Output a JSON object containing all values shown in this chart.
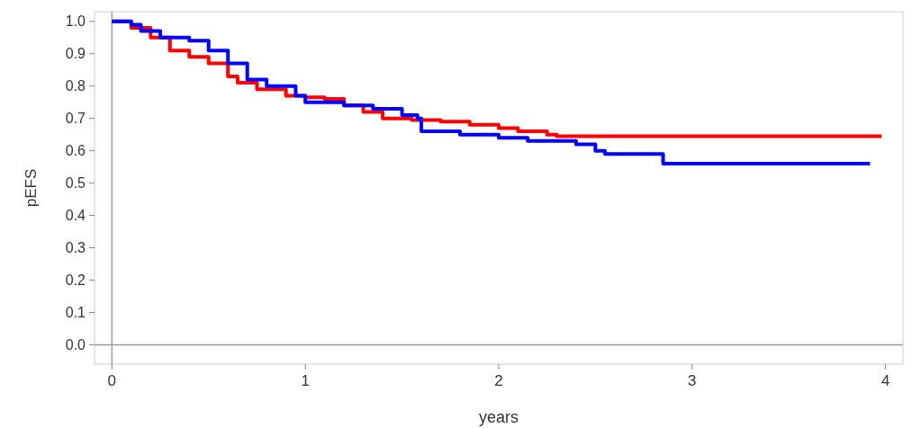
{
  "chart_data": {
    "type": "step",
    "xlabel": "years",
    "ylabel": "pEFS",
    "xlim": [
      -0.09,
      4.09
    ],
    "ylim": [
      -0.06,
      1.03
    ],
    "xticks": [
      0,
      1,
      2,
      3,
      4
    ],
    "yticks": [
      {
        "value": 0,
        "label": "0.0"
      },
      0.1,
      0.2,
      0.3,
      0.4,
      0.5,
      0.6,
      0.7,
      0.8,
      0.9,
      {
        "value": 1,
        "label": "1.0"
      }
    ],
    "grid": false,
    "ref_lines": [
      {
        "axis": "x",
        "value": 0,
        "color": "#a0a0a0"
      },
      {
        "axis": "y",
        "value": 0,
        "color": "#999999"
      }
    ],
    "series": [
      {
        "color": "#ff0000",
        "x": [
          0,
          0.1,
          0.2,
          0.3,
          0.4,
          0.5,
          0.6,
          0.65,
          0.75,
          0.9,
          1.0,
          1.1,
          1.2,
          1.3,
          1.4,
          1.55,
          1.7,
          1.85,
          2.0,
          2.1,
          2.25,
          2.3,
          3.98
        ],
        "values": [
          1.0,
          0.98,
          0.95,
          0.91,
          0.89,
          0.87,
          0.83,
          0.81,
          0.79,
          0.77,
          0.765,
          0.76,
          0.74,
          0.72,
          0.7,
          0.695,
          0.69,
          0.68,
          0.67,
          0.66,
          0.65,
          0.645,
          0.645
        ]
      },
      {
        "color": "#0000ff",
        "x": [
          0,
          0.1,
          0.15,
          0.25,
          0.4,
          0.5,
          0.6,
          0.7,
          0.8,
          0.95,
          1.0,
          1.2,
          1.35,
          1.5,
          1.58,
          1.6,
          1.8,
          2.0,
          2.15,
          2.4,
          2.5,
          2.55,
          2.85,
          3.92
        ],
        "values": [
          1.0,
          0.99,
          0.97,
          0.95,
          0.94,
          0.91,
          0.87,
          0.82,
          0.8,
          0.77,
          0.75,
          0.74,
          0.73,
          0.71,
          0.7,
          0.66,
          0.65,
          0.64,
          0.63,
          0.62,
          0.6,
          0.59,
          0.56,
          0.56
        ]
      }
    ]
  }
}
